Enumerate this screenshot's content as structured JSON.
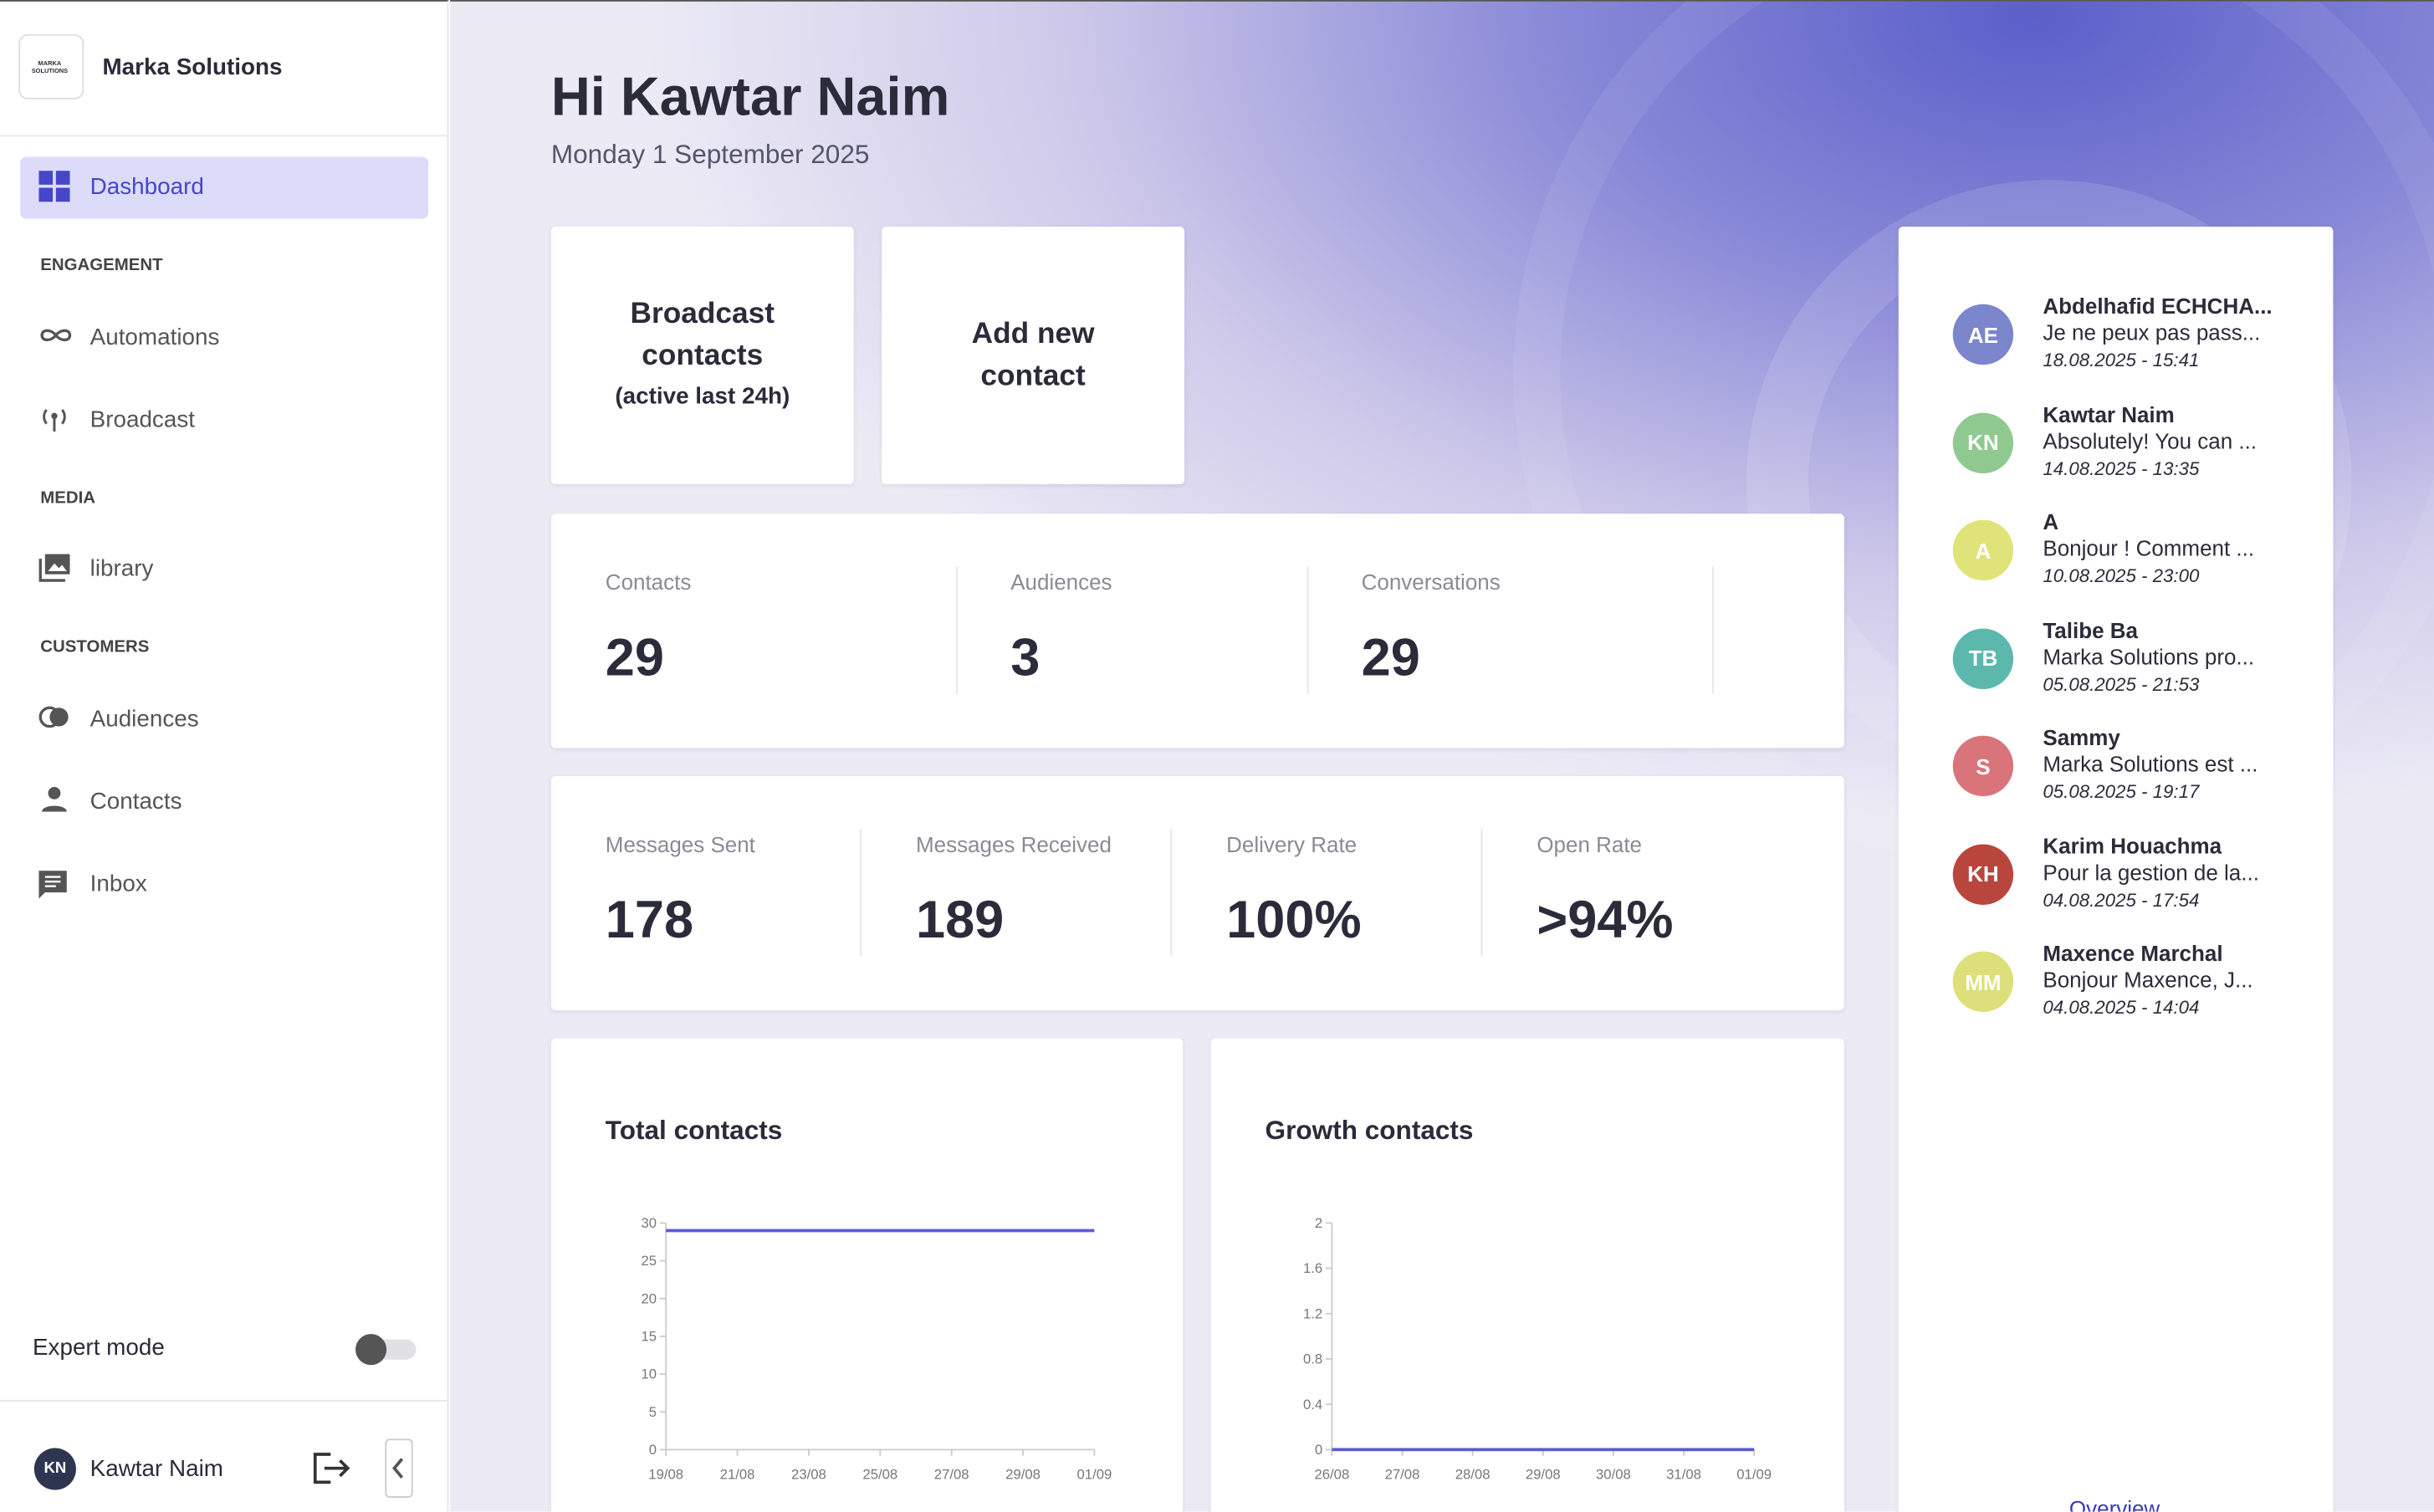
{
  "sidebar": {
    "logo": "MARKA SOLUTIONS",
    "brand": "Marka Solutions",
    "nav": [
      "Dashboard",
      "Automations",
      "Broadcast",
      "library",
      "Audiences",
      "Contacts",
      "Inbox"
    ],
    "sections": [
      "ENGAGEMENT",
      "MEDIA",
      "CUSTOMERS"
    ],
    "expert_mode": "Expert mode",
    "user": {
      "initials": "KN",
      "name": "Kawtar Naim"
    }
  },
  "header": {
    "title": "Hi Kawtar Naim",
    "date": "Monday 1 September 2025"
  },
  "actions": [
    {
      "line1": "Broadcast",
      "line2": "contacts",
      "line3": "(active last 24h)"
    },
    {
      "line1": "Add new",
      "line2": "contact"
    }
  ],
  "stats": [
    {
      "label": "Contacts",
      "value": 29
    },
    {
      "label": "Audiences",
      "value": 3
    },
    {
      "label": "Conversations",
      "value": 29
    }
  ],
  "messages": [
    {
      "label": "Messages Sent",
      "value": 178
    },
    {
      "label": "Messages Received",
      "value": 189
    },
    {
      "label": "Delivery Rate",
      "value": "100%"
    },
    {
      "label": "Open Rate",
      "value": ">94%"
    }
  ],
  "charts": [
    {
      "type": "line",
      "title": "Total contacts",
      "categories": [
        "19/08",
        "21/08",
        "23/08",
        "25/08",
        "27/08",
        "29/08",
        "01/09"
      ],
      "values": [
        29,
        29,
        29,
        29,
        29,
        29,
        29
      ],
      "color": "#5b5bd6",
      "ylim": [
        0,
        30
      ],
      "yticks": [
        0,
        5,
        10,
        15,
        20,
        25,
        30
      ]
    },
    {
      "type": "line",
      "title": "Growth contacts",
      "categories": [
        "26/08",
        "27/08",
        "28/08",
        "29/08",
        "30/08",
        "31/08",
        "01/09"
      ],
      "values": [
        0,
        0,
        0,
        0,
        0,
        0,
        0
      ],
      "color": "#5b5bd6",
      "ylim": [
        0,
        2
      ],
      "yticks": [
        0,
        0.4,
        0.8,
        1.2,
        1.6,
        2
      ]
    }
  ],
  "conversations": [
    {
      "initials": "AE",
      "color": "#7b86cc",
      "name": "Abdelhafid ECHCHA...",
      "message": "Je ne peux pas pass...",
      "date": "18.08.2025 - 15:41"
    },
    {
      "initials": "KN",
      "color": "#8fc98f",
      "name": "Kawtar Naim",
      "message": "Absolutely! You can ...",
      "date": "14.08.2025 - 13:35"
    },
    {
      "initials": "A",
      "color": "#dfe37a",
      "name": "A",
      "message": "Bonjour ! Comment ...",
      "date": "10.08.2025 - 23:00"
    },
    {
      "initials": "TB",
      "color": "#5cb8ad",
      "name": "Talibe Ba",
      "message": "Marka Solutions pro...",
      "date": "05.08.2025 - 21:53"
    },
    {
      "initials": "S",
      "color": "#d9757a",
      "name": "Sammy",
      "message": "Marka Solutions est ...",
      "date": "05.08.2025 - 19:17"
    },
    {
      "initials": "KH",
      "color": "#b8463d",
      "name": "Karim Houachma",
      "message": "Pour la gestion de la...",
      "date": "04.08.2025 - 17:54"
    },
    {
      "initials": "MM",
      "color": "#dde07a",
      "name": "Maxence Marchal",
      "message": "Bonjour Maxence, J...",
      "date": "04.08.2025 - 14:04"
    }
  ],
  "overview": "Overview"
}
